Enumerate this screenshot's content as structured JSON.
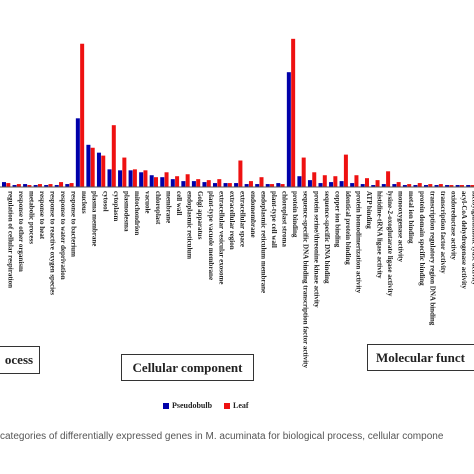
{
  "chart_data": {
    "type": "bar",
    "series": [
      {
        "name": "Pseudobulb",
        "color": "#0000aa"
      },
      {
        "name": "Leaf",
        "color": "#ee1111"
      }
    ],
    "categories": [
      "regulation of cellular respiration",
      "response to other organism",
      "metabolic process",
      "response to heat",
      "response to reactive oxygen species",
      "response to water deprivation",
      "response to bacterium",
      "nucleus",
      "plasma membrane",
      "cytosol",
      "cytoplasm",
      "plasmodesma",
      "mitochondrion",
      "vacuole",
      "chloroplast",
      "membrane",
      "cell wall",
      "endoplasmic reticulum",
      "Golgi apparatus",
      "plant-type vacuole membrane",
      "extracellular vesicular exosome",
      "extracellular region",
      "extracellular space",
      "endomembrane",
      "endoplasmic reticulum membrane",
      "plant-type cell wall",
      "chloroplast stroma",
      "protein binding",
      "sequence-specific DNA binding transcription factor activity",
      "protein serine/threonine kinase activity",
      "sequence-specific DNA binding",
      "copper ion binding",
      "identical protein binding",
      "protein homodimerization activity",
      "ATP binding",
      "histidine-tRNA ligase activity",
      "lysine-2-oxoglutarate ligase activity",
      "monooxygenase activity",
      "metal ion binding",
      "protein domain specific binding",
      "transcription regulatory region DNA binding",
      "transcription factor activity",
      "oxidoreductase activity",
      "acyl-CoA dehydrogenase activity",
      "lactoylglutathione lyase activity"
    ],
    "values": {
      "Pseudobulb": [
        5,
        2,
        3,
        2,
        2,
        2,
        3,
        70,
        43,
        35,
        18,
        17,
        17,
        15,
        12,
        10,
        8,
        6,
        6,
        5,
        4,
        4,
        4,
        3,
        3,
        3,
        4,
        117,
        11,
        7,
        4,
        5,
        6,
        4,
        3,
        2,
        3,
        3,
        2,
        2,
        2,
        2,
        2,
        2,
        2
      ],
      "Leaf": [
        4,
        3,
        2,
        3,
        3,
        5,
        4,
        146,
        40,
        32,
        63,
        30,
        18,
        17,
        10,
        15,
        11,
        13,
        8,
        7,
        8,
        4,
        27,
        6,
        10,
        3,
        3,
        151,
        30,
        15,
        12,
        11,
        33,
        12,
        9,
        7,
        16,
        5,
        3,
        4,
        3,
        3,
        2,
        2,
        2
      ]
    },
    "ylim": [
      0,
      160
    ],
    "grid": false,
    "legend_position": "bottom-center",
    "panels": [
      {
        "label": "ocess"
      },
      {
        "label": "Cellular component"
      },
      {
        "label": "Molecular funct"
      }
    ]
  },
  "caption": "categories of differentially expressed genes in M. acuminata for biological process, cellular compone"
}
